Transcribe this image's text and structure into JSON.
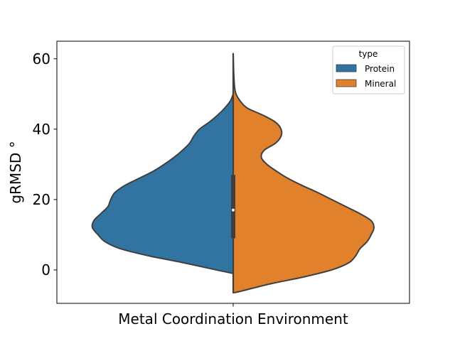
{
  "chart_data": {
    "type": "violin",
    "split": true,
    "xlabel": "Metal Coordination Environment",
    "ylabel": "gRMSD °",
    "ylim": [
      -9.5,
      65
    ],
    "yticks": [
      0,
      20,
      40,
      60
    ],
    "ytick_labels": [
      "0",
      "20",
      "40",
      "60"
    ],
    "legend": {
      "title": "type",
      "placement": "top-right",
      "entries": [
        "Protein",
        "Mineral"
      ]
    },
    "series": [
      {
        "name": "Protein",
        "color": "#3274a1",
        "side": "left",
        "density_profile": [
          {
            "y": -1,
            "w": 0.0
          },
          {
            "y": 0,
            "w": 0.12
          },
          {
            "y": 2,
            "w": 0.35
          },
          {
            "y": 4,
            "w": 0.6
          },
          {
            "y": 6,
            "w": 0.8
          },
          {
            "y": 8,
            "w": 0.91
          },
          {
            "y": 10,
            "w": 0.96
          },
          {
            "y": 12,
            "w": 1.0
          },
          {
            "y": 14,
            "w": 0.99
          },
          {
            "y": 16,
            "w": 0.94
          },
          {
            "y": 18,
            "w": 0.89
          },
          {
            "y": 20,
            "w": 0.87
          },
          {
            "y": 22,
            "w": 0.84
          },
          {
            "y": 24,
            "w": 0.77
          },
          {
            "y": 26,
            "w": 0.67
          },
          {
            "y": 28,
            "w": 0.57
          },
          {
            "y": 30,
            "w": 0.49
          },
          {
            "y": 32,
            "w": 0.42
          },
          {
            "y": 34,
            "w": 0.36
          },
          {
            "y": 36,
            "w": 0.31
          },
          {
            "y": 38,
            "w": 0.28
          },
          {
            "y": 40,
            "w": 0.24
          },
          {
            "y": 42,
            "w": 0.17
          },
          {
            "y": 44,
            "w": 0.11
          },
          {
            "y": 46,
            "w": 0.06
          },
          {
            "y": 48,
            "w": 0.02
          },
          {
            "y": 50,
            "w": 0.0
          }
        ]
      },
      {
        "name": "Mineral",
        "color": "#e1812c",
        "side": "right",
        "density_profile": [
          {
            "y": -6.5,
            "w": 0.0
          },
          {
            "y": -6,
            "w": 0.06
          },
          {
            "y": -4,
            "w": 0.26
          },
          {
            "y": -2,
            "w": 0.5
          },
          {
            "y": 0,
            "w": 0.7
          },
          {
            "y": 2,
            "w": 0.82
          },
          {
            "y": 4,
            "w": 0.87
          },
          {
            "y": 6,
            "w": 0.9
          },
          {
            "y": 8,
            "w": 0.95
          },
          {
            "y": 10,
            "w": 0.98
          },
          {
            "y": 12,
            "w": 1.0
          },
          {
            "y": 14,
            "w": 0.98
          },
          {
            "y": 16,
            "w": 0.9
          },
          {
            "y": 18,
            "w": 0.8
          },
          {
            "y": 20,
            "w": 0.7
          },
          {
            "y": 22,
            "w": 0.6
          },
          {
            "y": 24,
            "w": 0.49
          },
          {
            "y": 26,
            "w": 0.39
          },
          {
            "y": 28,
            "w": 0.31
          },
          {
            "y": 30,
            "w": 0.24
          },
          {
            "y": 32,
            "w": 0.2
          },
          {
            "y": 34,
            "w": 0.22
          },
          {
            "y": 36,
            "w": 0.3
          },
          {
            "y": 38,
            "w": 0.34
          },
          {
            "y": 40,
            "w": 0.34
          },
          {
            "y": 42,
            "w": 0.3
          },
          {
            "y": 44,
            "w": 0.21
          },
          {
            "y": 46,
            "w": 0.1
          },
          {
            "y": 48,
            "w": 0.05
          },
          {
            "y": 50,
            "w": 0.02
          },
          {
            "y": 52,
            "w": 0.01
          },
          {
            "y": 56,
            "w": 0.004
          },
          {
            "y": 61.5,
            "w": 0.0
          }
        ]
      }
    ],
    "inner_box": {
      "q1": 9,
      "median": 17,
      "q3": 27,
      "whisker_low": -6,
      "whisker_high": 61.5
    }
  }
}
